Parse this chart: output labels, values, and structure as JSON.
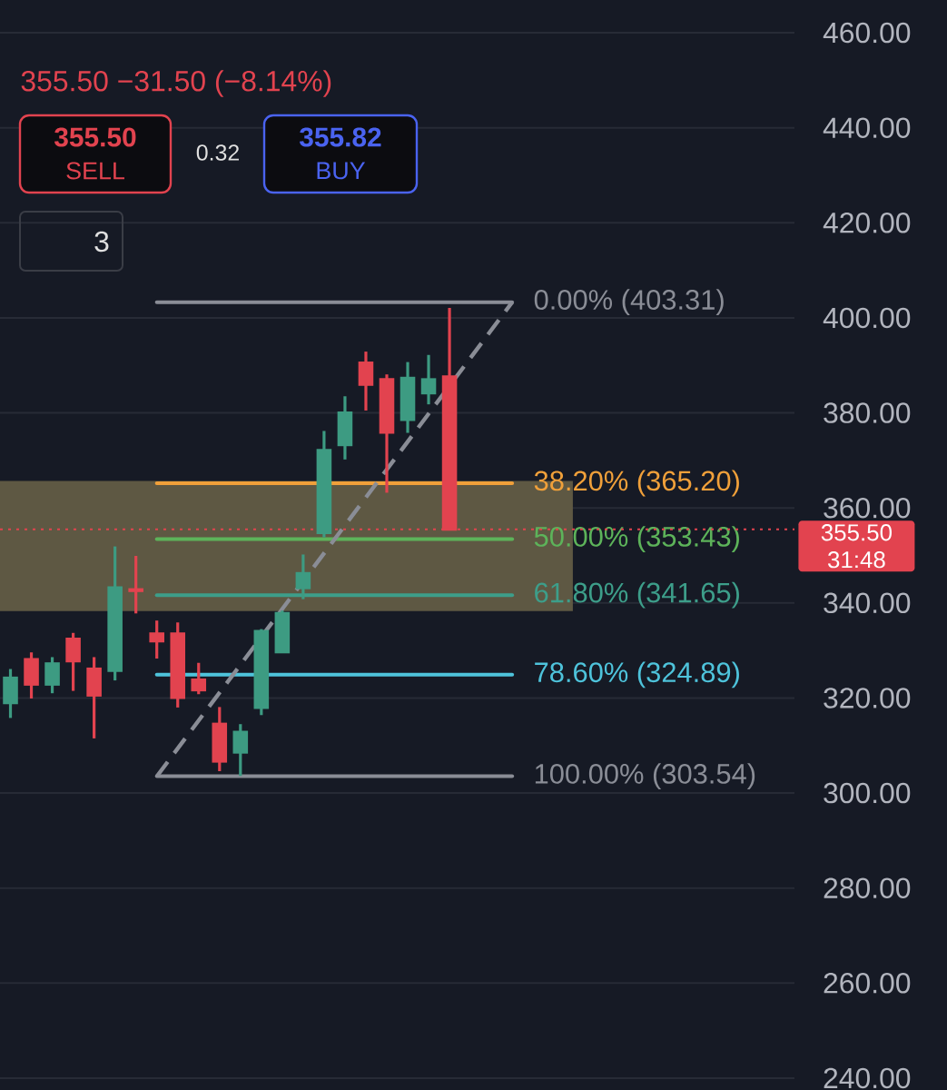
{
  "chart_data": {
    "type": "candlestick",
    "subtitle": "355.50  −31.50 (−8.14%)",
    "categories": [
      null,
      null,
      null,
      null,
      null,
      null,
      null,
      null,
      null,
      null,
      null,
      null,
      null,
      null,
      null,
      null,
      null,
      null,
      null,
      null,
      null,
      null,
      null,
      null,
      null,
      null,
      null,
      null,
      null,
      null,
      null,
      null,
      null,
      null,
      null,
      null,
      null,
      null
    ],
    "series": [
      {
        "type": "candlestick",
        "ohlc": [
          [
            319.0,
            326.1,
            315.8,
            324.2
          ],
          [
            328.1,
            329.6,
            319.9,
            322.9
          ],
          [
            322.9,
            328.6,
            321.0,
            327.2
          ],
          [
            332.4,
            333.7,
            321.5,
            327.8
          ],
          [
            326.1,
            328.6,
            311.5,
            320.6
          ],
          [
            325.8,
            351.9,
            323.7,
            343.2
          ],
          [
            342.8,
            349.9,
            337.8,
            342.6
          ],
          [
            333.5,
            336.3,
            328.3,
            332.0
          ],
          [
            333.5,
            335.9,
            318.0,
            320.1
          ],
          [
            323.8,
            327.4,
            320.8,
            321.7
          ],
          [
            314.5,
            318.1,
            304.6,
            306.7
          ],
          [
            308.6,
            314.5,
            303.6,
            312.8
          ],
          [
            318.0,
            334.5,
            316.4,
            334.0
          ],
          [
            329.7,
            338.4,
            329.5,
            337.8
          ],
          [
            343.2,
            350.2,
            340.8,
            346.2
          ],
          [
            354.8,
            376.2,
            353.8,
            372.1
          ],
          [
            373.3,
            383.5,
            370.2,
            380.0
          ],
          [
            390.5,
            392.9,
            380.5,
            386.0
          ],
          [
            387.0,
            388.1,
            363.2,
            375.9
          ],
          [
            378.6,
            390.7,
            375.8,
            387.3
          ],
          [
            384.2,
            392.2,
            381.8,
            387.0
          ],
          [
            387.6,
            402.1,
            355.5,
            355.5
          ],
          null,
          null,
          null,
          null,
          null,
          null,
          null,
          null,
          null,
          null,
          null,
          null,
          null,
          null,
          null,
          null
        ],
        "colors": [
          "#3d9b82",
          "#e2434f",
          "#3d9b82",
          "#e2434f",
          "#e2434f",
          "#3d9b82",
          "#e2434f",
          "#e2434f",
          "#e2434f",
          "#e2434f",
          "#e2434f",
          "#3d9b82",
          "#3d9b82",
          "#3d9b82",
          "#3d9b82",
          "#3d9b82",
          "#3d9b82",
          "#e2434f",
          "#e2434f",
          "#3d9b82",
          "#3d9b82",
          "#e2434f",
          null,
          null,
          null,
          null,
          null,
          null,
          null,
          null,
          null,
          null,
          null,
          null,
          null,
          null,
          null,
          null
        ]
      },
      {
        "type": "line",
        "values": [
          null,
          null,
          null,
          null,
          null,
          null,
          null,
          303.5,
          null,
          null,
          null,
          null,
          null,
          null,
          null,
          null,
          null,
          null,
          null,
          null,
          null,
          null,
          null,
          null,
          403.3,
          null,
          null,
          null,
          null,
          null,
          null,
          null,
          null,
          null,
          null,
          null,
          null,
          null
        ],
        "color": "#8a8d96",
        "line_style": "dashed"
      }
    ],
    "ylim": [
      237.5,
      466.9
    ],
    "yticks": [
      {
        "value": 240,
        "label": "240.00"
      },
      {
        "value": 260,
        "label": "260.00"
      },
      {
        "value": 280,
        "label": "280.00"
      },
      {
        "value": 300,
        "label": "300.00"
      },
      {
        "value": 320,
        "label": "320.00"
      },
      {
        "value": 340,
        "label": "340.00"
      },
      {
        "value": 360,
        "label": "360.00"
      },
      {
        "value": 380,
        "label": "380.00"
      },
      {
        "value": 400,
        "label": "400.00"
      },
      {
        "value": 420,
        "label": "420.00"
      },
      {
        "value": 440,
        "label": "440.00"
      },
      {
        "value": 460,
        "label": "460.00"
      }
    ],
    "grid": "y",
    "tick_labels": "y",
    "bands": [
      {
        "axis": "y",
        "from": 338.3,
        "to": 365.7,
        "color": "#5e5843"
      }
    ],
    "ref_lines": [
      {
        "axis": "y",
        "value": 403.31,
        "label": "0.00% (403.31)",
        "color": "#8a8d96"
      },
      {
        "axis": "y",
        "value": 365.2,
        "label": "38.20% (365.20)",
        "color": "#f0a03a"
      },
      {
        "axis": "y",
        "value": 353.43,
        "label": "50.00% (353.43)",
        "color": "#5db35a"
      },
      {
        "axis": "y",
        "value": 341.65,
        "label": "61.80% (341.65)",
        "color": "#3d9e8a"
      },
      {
        "axis": "y",
        "value": 324.89,
        "label": "78.60% (324.89)",
        "color": "#4ec3db"
      },
      {
        "axis": "y",
        "value": 303.54,
        "label": "100.00% (303.54)",
        "color": "#8a8d96"
      },
      {
        "axis": "y",
        "value": 355.5,
        "label": "355.50 31:48",
        "color": "#e2434f",
        "line_style": "dotted"
      }
    ],
    "annotations": [
      "355.50",
      "SELL",
      "0.32",
      "355.82",
      "BUY",
      "3"
    ]
  }
}
